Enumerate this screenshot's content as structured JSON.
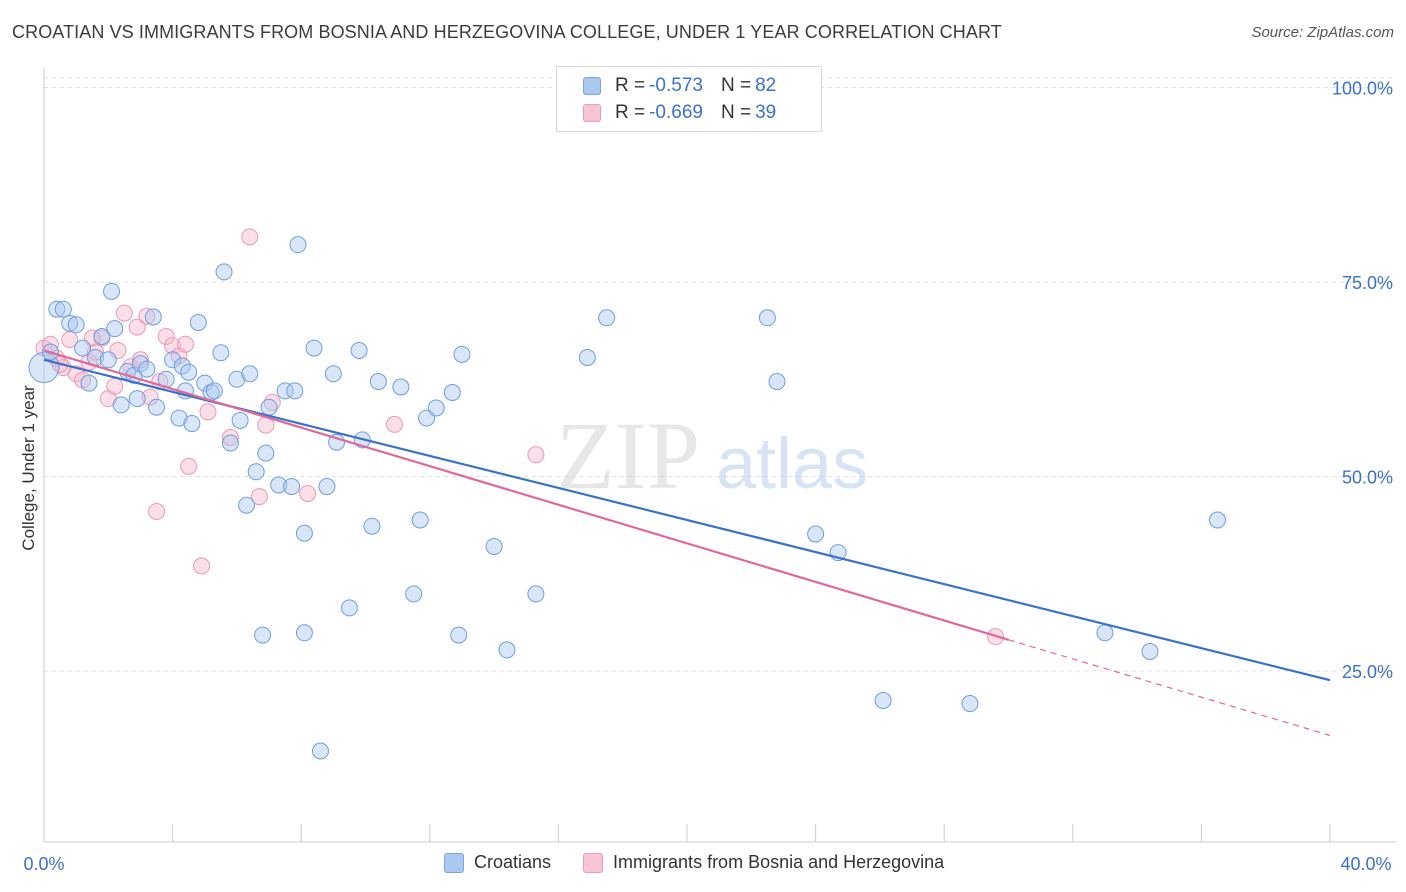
{
  "title": "CROATIAN VS IMMIGRANTS FROM BOSNIA AND HERZEGOVINA COLLEGE, UNDER 1 YEAR CORRELATION CHART",
  "source": "Source: ZipAtlas.com",
  "watermark": {
    "zip": "ZIP",
    "atlas": "atlas"
  },
  "colors": {
    "blue": "#3a72c8",
    "blue_fill": "#aac8f0",
    "pink": "#e0689a",
    "pink_fill": "#f6b8cc",
    "axis_text": "#3a72c8"
  },
  "legend": {
    "r_label": "R =",
    "n_label": "N =",
    "rows": [
      {
        "r": "-0.573",
        "n": "82"
      },
      {
        "r": "-0.669",
        "n": "39"
      }
    ]
  },
  "bottom_legend": {
    "series1": "Croatians",
    "series2": "Immigrants from Bosnia and Herzegovina"
  },
  "chart_data": {
    "type": "scatter",
    "title": "CROATIAN VS IMMIGRANTS FROM BOSNIA AND HERZEGOVINA COLLEGE, UNDER 1 YEAR CORRELATION CHART",
    "xlabel": "",
    "ylabel": "College, Under 1 year",
    "xlim": [
      0,
      40
    ],
    "ylim": [
      3,
      102
    ],
    "x_tick_labels": [
      "0.0%",
      "40.0%"
    ],
    "y_ticks": [
      25,
      50,
      75,
      100
    ],
    "y_tick_labels": [
      "25.0%",
      "50.0%",
      "75.0%",
      "100.0%"
    ],
    "series": [
      {
        "name": "Croatians",
        "trend": {
          "x0": 0,
          "y0": 65.0,
          "x1": 40,
          "y1": 23.8
        },
        "points": [
          [
            0.0,
            64.0
          ],
          [
            0.4,
            71.5
          ],
          [
            0.6,
            71.5
          ],
          [
            0.8,
            69.7
          ],
          [
            1.0,
            69.5
          ],
          [
            1.2,
            66.5
          ],
          [
            1.4,
            62.0
          ],
          [
            1.6,
            65.3
          ],
          [
            1.8,
            68.0
          ],
          [
            2.0,
            65.0
          ],
          [
            2.2,
            69.0
          ],
          [
            2.4,
            59.2
          ],
          [
            2.1,
            73.8
          ],
          [
            2.6,
            63.5
          ],
          [
            2.8,
            63.0
          ],
          [
            3.0,
            64.5
          ],
          [
            3.2,
            63.8
          ],
          [
            3.4,
            70.5
          ],
          [
            3.5,
            58.9
          ],
          [
            3.8,
            62.5
          ],
          [
            4.0,
            65.0
          ],
          [
            4.2,
            57.5
          ],
          [
            4.3,
            64.2
          ],
          [
            4.4,
            61.0
          ],
          [
            4.5,
            63.4
          ],
          [
            4.6,
            56.8
          ],
          [
            4.8,
            69.8
          ],
          [
            5.0,
            62.0
          ],
          [
            5.2,
            60.8
          ],
          [
            5.3,
            61.0
          ],
          [
            5.5,
            65.9
          ],
          [
            5.6,
            76.3
          ],
          [
            5.8,
            54.3
          ],
          [
            6.0,
            62.5
          ],
          [
            6.1,
            57.2
          ],
          [
            6.4,
            63.2
          ],
          [
            6.3,
            46.3
          ],
          [
            6.6,
            50.6
          ],
          [
            6.9,
            53.0
          ],
          [
            7.0,
            58.9
          ],
          [
            7.3,
            48.9
          ],
          [
            7.5,
            61.0
          ],
          [
            7.7,
            48.7
          ],
          [
            7.8,
            61.0
          ],
          [
            7.9,
            79.8
          ],
          [
            8.1,
            42.7
          ],
          [
            8.4,
            66.5
          ],
          [
            8.8,
            48.7
          ],
          [
            9.0,
            63.2
          ],
          [
            9.1,
            54.4
          ],
          [
            9.5,
            33.1
          ],
          [
            9.8,
            66.2
          ],
          [
            9.9,
            54.7
          ],
          [
            10.2,
            43.6
          ],
          [
            10.4,
            62.2
          ],
          [
            11.1,
            61.5
          ],
          [
            11.5,
            34.9
          ],
          [
            11.7,
            44.4
          ],
          [
            11.9,
            57.5
          ],
          [
            12.2,
            58.8
          ],
          [
            12.7,
            60.8
          ],
          [
            12.9,
            29.6
          ],
          [
            13.0,
            65.7
          ],
          [
            14.0,
            41.0
          ],
          [
            14.4,
            27.7
          ],
          [
            15.3,
            34.9
          ],
          [
            16.9,
            65.3
          ],
          [
            17.5,
            70.4
          ],
          [
            6.8,
            29.6
          ],
          [
            8.1,
            29.9
          ],
          [
            8.6,
            14.7
          ],
          [
            22.5,
            70.4
          ],
          [
            22.8,
            62.2
          ],
          [
            24.0,
            42.6
          ],
          [
            24.7,
            40.2
          ],
          [
            26.1,
            21.2
          ],
          [
            28.8,
            20.8
          ],
          [
            33.0,
            29.9
          ],
          [
            34.4,
            27.5
          ],
          [
            36.5,
            44.4
          ],
          [
            0.2,
            66.0
          ],
          [
            2.9,
            60.0
          ]
        ]
      },
      {
        "name": "Immigrants from Bosnia and Herzegovina",
        "trend_solid": {
          "x0": 0,
          "y0": 66.2,
          "x1": 30.0,
          "y1": 29.0
        },
        "trend_dashed": {
          "x0": 30.0,
          "y0": 29.0,
          "x1": 40,
          "y1": 16.7
        },
        "points": [
          [
            0.0,
            66.5
          ],
          [
            0.2,
            67.0
          ],
          [
            0.4,
            65.2
          ],
          [
            0.6,
            64.0
          ],
          [
            0.8,
            67.6
          ],
          [
            1.0,
            63.2
          ],
          [
            1.2,
            62.4
          ],
          [
            1.4,
            64.7
          ],
          [
            1.6,
            66.0
          ],
          [
            1.8,
            67.8
          ],
          [
            2.0,
            60.0
          ],
          [
            2.2,
            61.6
          ],
          [
            2.3,
            66.2
          ],
          [
            2.5,
            71.0
          ],
          [
            2.7,
            64.1
          ],
          [
            2.9,
            69.2
          ],
          [
            3.0,
            65.0
          ],
          [
            3.2,
            70.6
          ],
          [
            3.3,
            60.2
          ],
          [
            3.6,
            62.2
          ],
          [
            3.8,
            68.0
          ],
          [
            4.0,
            66.8
          ],
          [
            4.2,
            65.5
          ],
          [
            4.4,
            67.0
          ],
          [
            4.5,
            51.3
          ],
          [
            4.9,
            38.5
          ],
          [
            5.1,
            58.3
          ],
          [
            5.8,
            55.0
          ],
          [
            6.4,
            80.8
          ],
          [
            6.7,
            47.4
          ],
          [
            6.9,
            56.6
          ],
          [
            7.1,
            59.5
          ],
          [
            8.2,
            47.8
          ],
          [
            10.9,
            56.7
          ],
          [
            15.3,
            52.8
          ],
          [
            29.6,
            29.4
          ],
          [
            3.5,
            45.5
          ],
          [
            1.5,
            67.8
          ],
          [
            0.5,
            64.4
          ]
        ]
      }
    ]
  }
}
